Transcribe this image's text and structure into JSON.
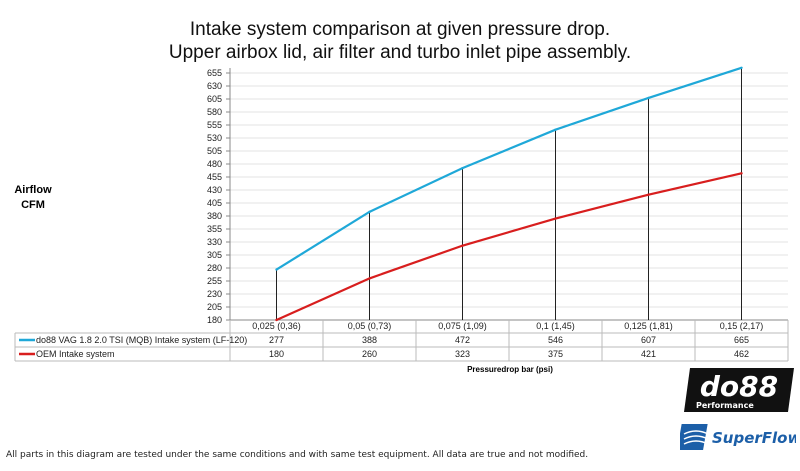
{
  "chart_data": {
    "type": "line",
    "title": "Intake system comparison at given pressure drop.",
    "subtitle": "Upper airbox lid, air filter and turbo inlet pipe assembly.",
    "ylabel": "Airflow CFM",
    "ylabel_lines": [
      "Airflow",
      "CFM"
    ],
    "xlabel": "Pressuredrop bar (psi)",
    "ylim": [
      180,
      655
    ],
    "yticks": [
      180,
      205,
      230,
      255,
      280,
      305,
      330,
      355,
      380,
      405,
      430,
      455,
      480,
      505,
      530,
      555,
      580,
      605,
      630,
      655
    ],
    "categories": [
      "0,025 (0,36)",
      "0,05 (0,73)",
      "0,075 (1,09)",
      "0,1 (1,45)",
      "0,125 (1,81)",
      "0,15 (2,17)"
    ],
    "grid": true,
    "legend": "data-table",
    "series": [
      {
        "name": "do88 VAG 1.8 2.0 TSI (MQB) Intake system (LF-120)",
        "values": [
          277,
          388,
          472,
          546,
          607,
          665
        ],
        "color": "#1fa8d8"
      },
      {
        "name": "OEM Intake system",
        "values": [
          180,
          260,
          323,
          375,
          421,
          462
        ],
        "color": "#d81e1e"
      }
    ]
  },
  "footer": "All parts in this diagram are tested under the same conditions and with same test equipment. All data are true and not modified.",
  "logos": {
    "do88": "do88",
    "do88_sub": "Performance",
    "superflow": "SuperFlow"
  }
}
